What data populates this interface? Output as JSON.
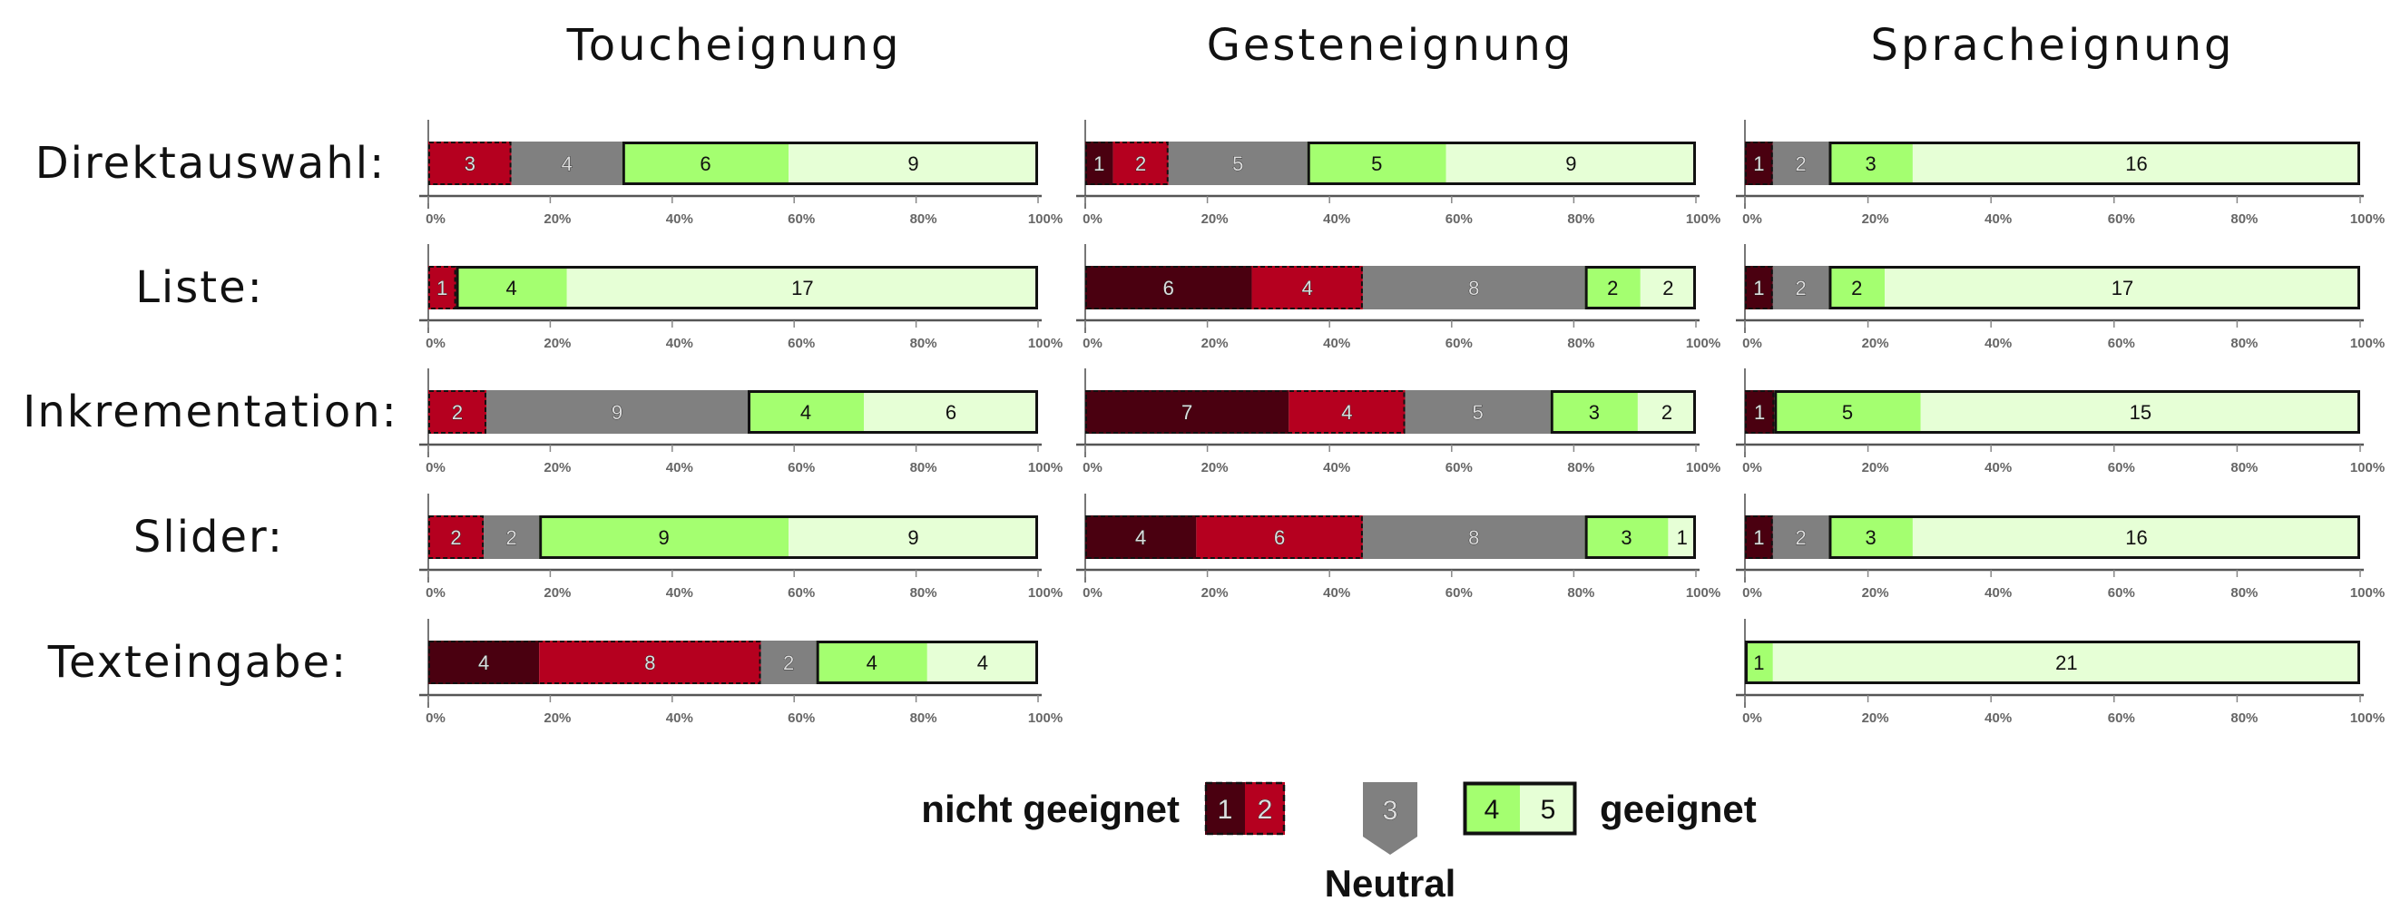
{
  "colors": {
    "1": "#4a0010",
    "2": "#b5001f",
    "3": "#808080",
    "4": "#a4ff70",
    "5": "#e6ffd6"
  },
  "legend": {
    "left_label": "nicht geeignet",
    "right_label": "geeignet",
    "neutral_label": "Neutral",
    "keys": [
      "1",
      "2",
      "3",
      "4",
      "5"
    ]
  },
  "chart_data": {
    "type": "bar",
    "stacked": true,
    "orientation": "horizontal",
    "columns": [
      "Toucheignung",
      "Gesteneignung",
      "Spracheignung"
    ],
    "rows": [
      "Direktauswahl:",
      "Liste:",
      "Inkrementation:",
      "Slider:",
      "Texteingabe:"
    ],
    "ticks": [
      "0%",
      "20%",
      "40%",
      "60%",
      "80%",
      "100%"
    ],
    "xlim": [
      0,
      100
    ],
    "series": [
      {
        "name": "1",
        "values": [
          [
            0,
            0,
            0,
            0,
            4
          ],
          [
            1,
            6,
            7,
            4,
            null
          ],
          [
            1,
            1,
            1,
            1,
            0
          ]
        ]
      },
      {
        "name": "2",
        "values": [
          [
            3,
            1,
            2,
            2,
            8
          ],
          [
            2,
            4,
            4,
            6,
            null
          ],
          [
            0,
            0,
            0,
            0,
            0
          ]
        ]
      },
      {
        "name": "3",
        "values": [
          [
            4,
            0,
            9,
            2,
            2
          ],
          [
            5,
            8,
            5,
            8,
            null
          ],
          [
            2,
            2,
            0,
            2,
            0
          ]
        ]
      },
      {
        "name": "4",
        "values": [
          [
            6,
            4,
            4,
            9,
            4
          ],
          [
            5,
            2,
            3,
            3,
            null
          ],
          [
            3,
            2,
            5,
            3,
            1
          ]
        ]
      },
      {
        "name": "5",
        "values": [
          [
            9,
            17,
            6,
            9,
            4
          ],
          [
            9,
            2,
            2,
            1,
            null
          ],
          [
            16,
            17,
            15,
            16,
            21
          ]
        ]
      }
    ]
  }
}
